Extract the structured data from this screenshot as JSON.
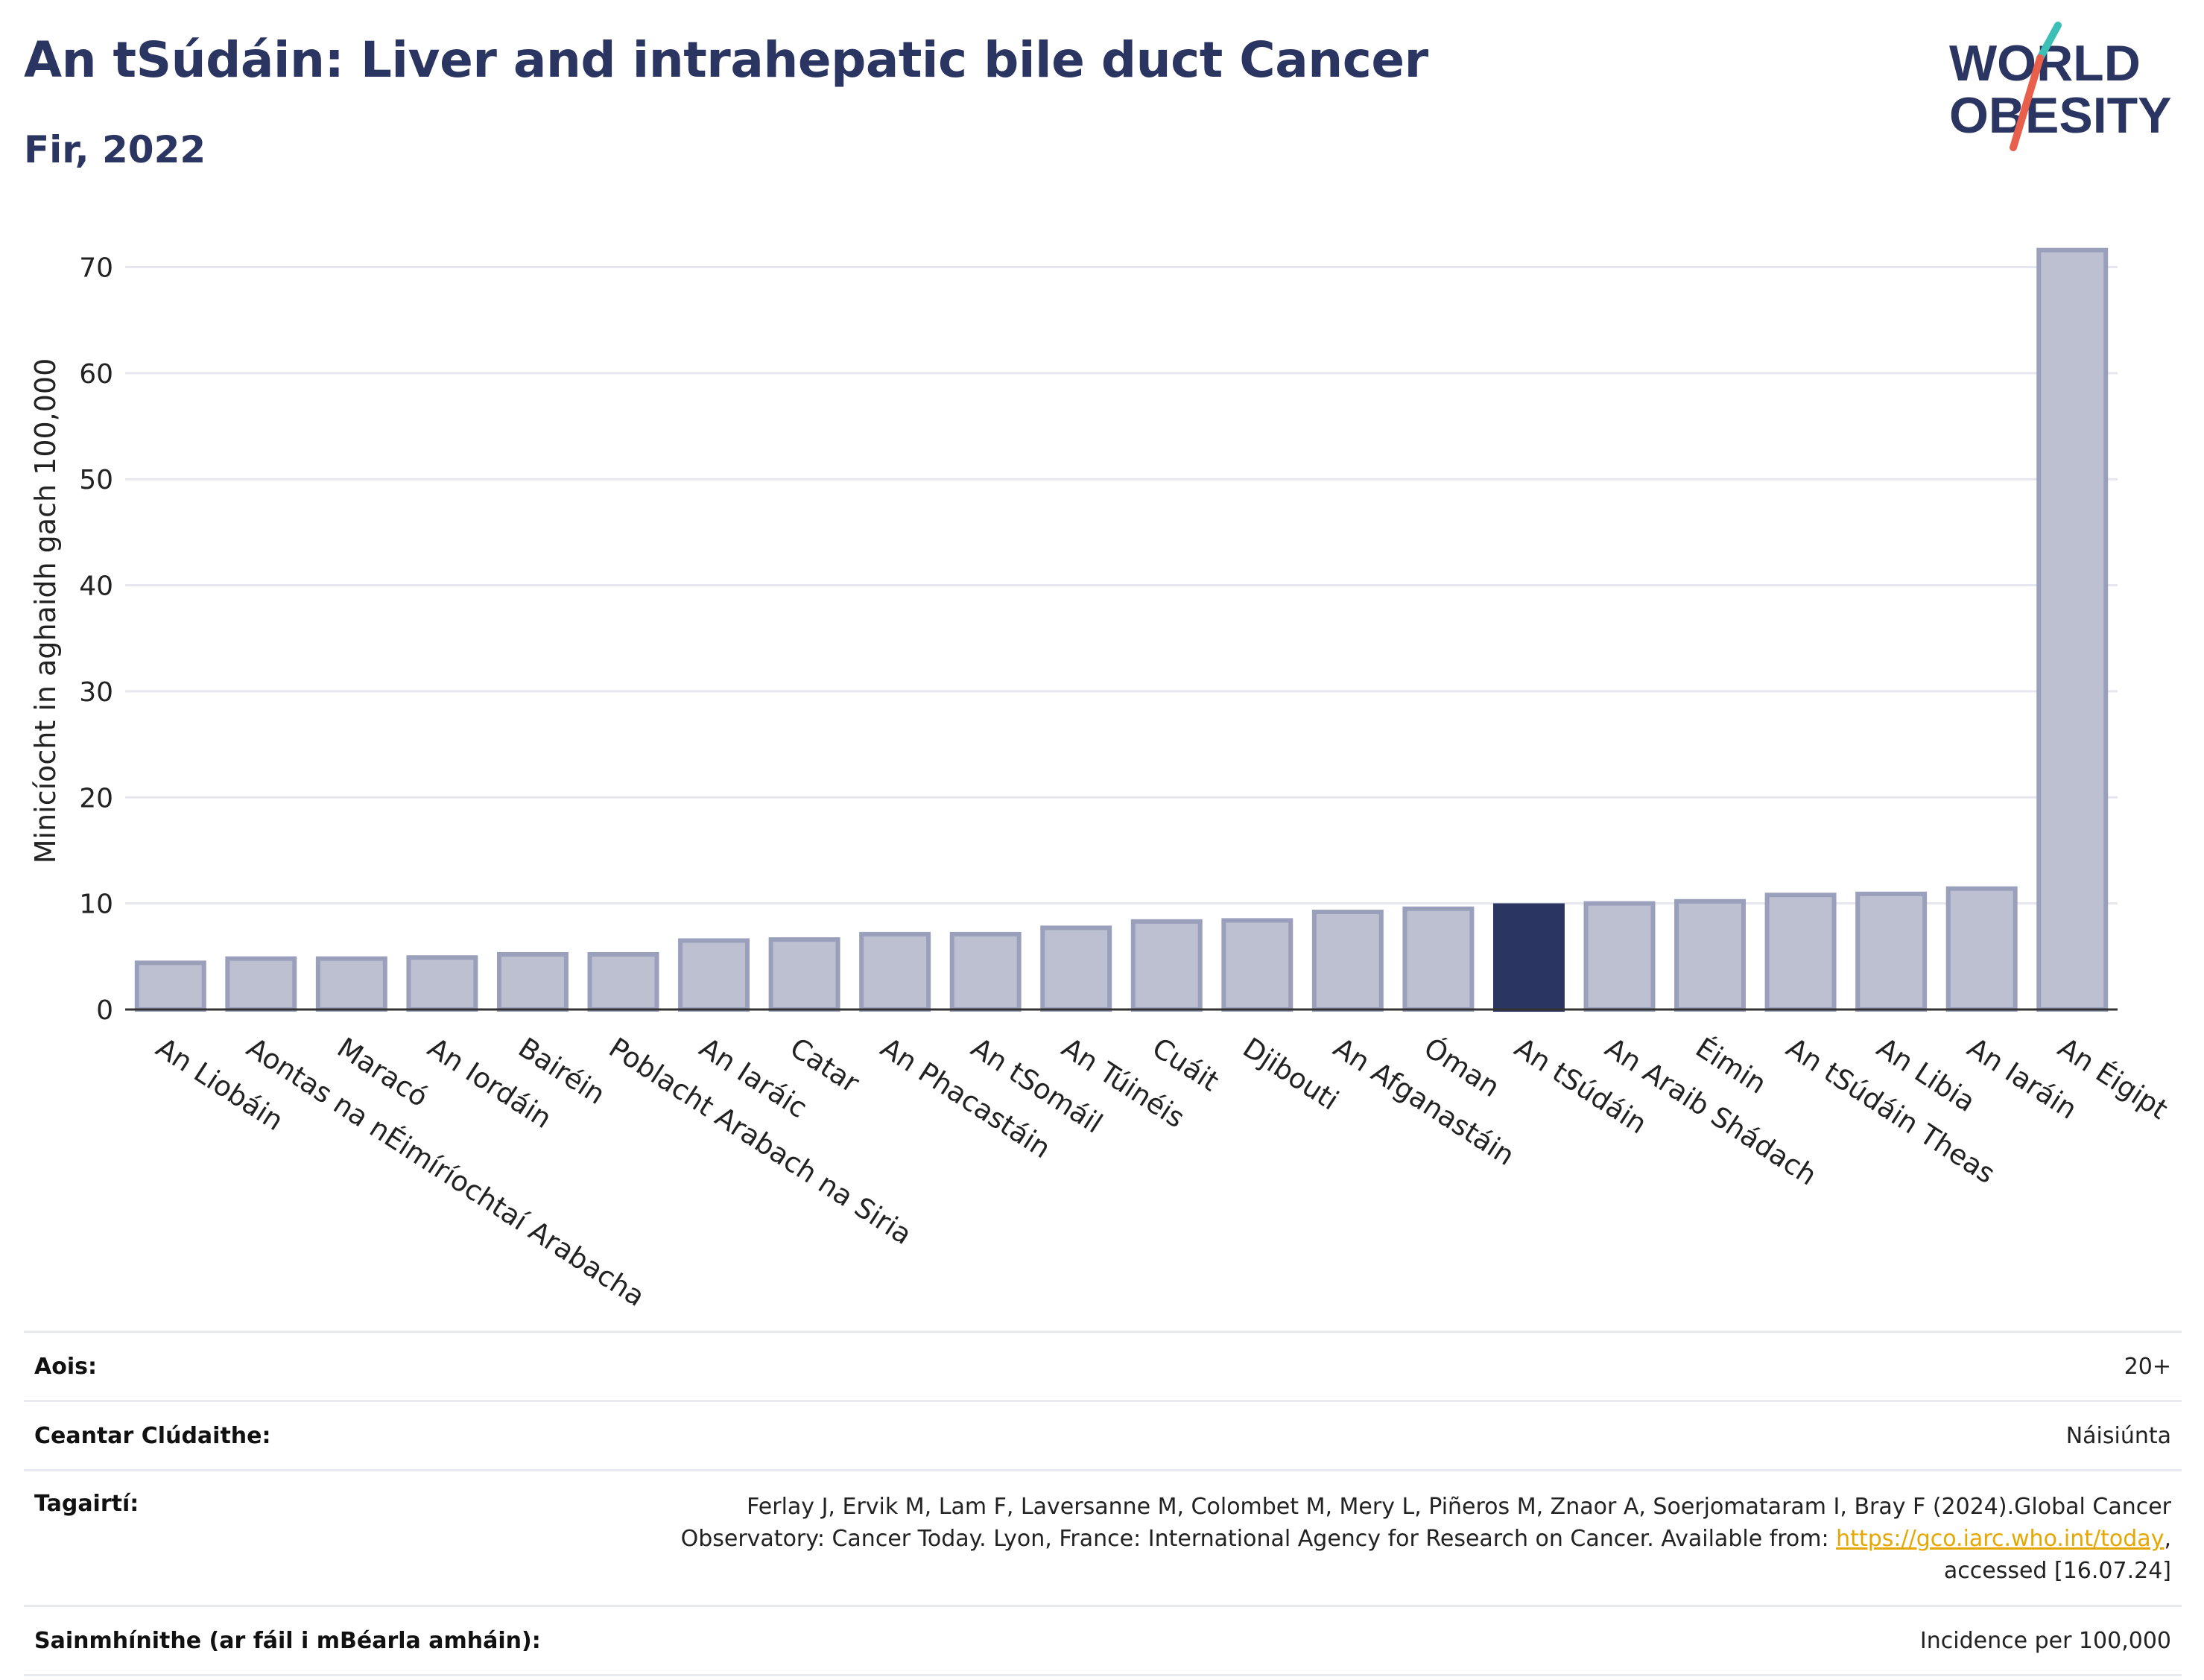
{
  "header": {
    "title": "An tSúdáin: Liver and intrahepatic bile duct Cancer",
    "subtitle": "Fir, 2022"
  },
  "logo": {
    "line1": "WORLD",
    "line2": "OBESITY",
    "colors": {
      "text": "#2b3561",
      "slash_top": "#3bbfb6",
      "slash_bottom": "#e8604c"
    }
  },
  "colors": {
    "bar": "#bcc0d0",
    "bar_stroke": "#9aa0bb",
    "highlight": "#2b3561",
    "grid": "#e6e6ee",
    "axis": "#333333"
  },
  "chart_data": {
    "type": "bar",
    "ylabel": "Minicíocht in aghaidh gach 100,000",
    "ylim": [
      0,
      72
    ],
    "yticks": [
      0,
      10,
      20,
      30,
      40,
      50,
      60,
      70
    ],
    "grid": true,
    "highlight": "An tSúdáin",
    "categories": [
      "An Liobáin",
      "Aontas na nÉimíríochtaí Arabacha",
      "Maracó",
      "An Iordáin",
      "Bairéin",
      "Poblacht Arabach na Siria",
      "An Iaráic",
      "Catar",
      "An Phacastáin",
      "An tSomáil",
      "An Túinéis",
      "Cuáit",
      "Djibouti",
      "An Afganastáin",
      "Óman",
      "An tSúdáin",
      "An Araib Shádach",
      "Éimin",
      "An tSúdáin Theas",
      "An Libia",
      "An Iaráin",
      "An Éigipt"
    ],
    "values": [
      4.4,
      4.8,
      4.8,
      4.9,
      5.2,
      5.2,
      6.5,
      6.6,
      7.1,
      7.1,
      7.7,
      8.3,
      8.4,
      9.2,
      9.5,
      9.8,
      10.0,
      10.2,
      10.8,
      10.9,
      11.4,
      71.6
    ]
  },
  "meta": [
    {
      "label": "Aois:",
      "value": "20+"
    },
    {
      "label": "Ceantar Clúdaithe:",
      "value": "Náisiúnta"
    },
    {
      "label": "Tagairtí:",
      "value_line1": "Ferlay J, Ervik M, Lam F, Laversanne M, Colombet M, Mery L, Piñeros M, Znaor A, Soerjomataram I, Bray F (2024).Global Cancer",
      "value_line2": "Observatory: Cancer Today. Lyon, France: International Agency for Research on Cancer. Available from: ",
      "link": "https://gco.iarc.who.int/today",
      "value_line2_end": ",",
      "value_line3": "accessed [16.07.24]"
    },
    {
      "label": "Sainmhínithe (ar fáil i mBéarla amháin):",
      "value": "Incidence per 100,000"
    }
  ]
}
